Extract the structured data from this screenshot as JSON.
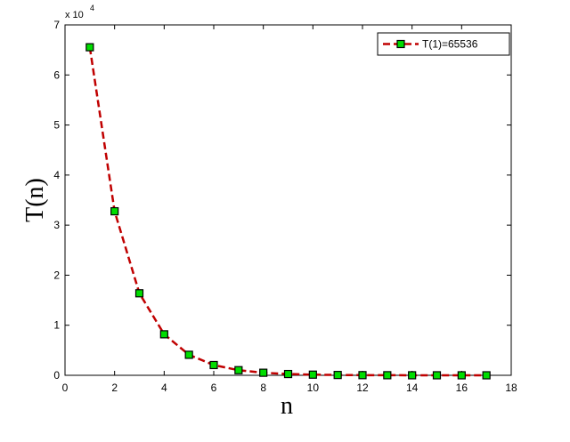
{
  "chart_data": {
    "type": "line",
    "x": [
      1,
      2,
      3,
      4,
      5,
      6,
      7,
      8,
      9,
      10,
      11,
      12,
      13,
      14,
      15,
      16,
      17
    ],
    "series": [
      {
        "name": "T(1)=65536",
        "color": "#c00000",
        "marker_color": "#00dd00",
        "values": [
          65536,
          32768,
          16384,
          8192,
          4096,
          2048,
          1024,
          512,
          256,
          128,
          64,
          32,
          16,
          8,
          4,
          2,
          1
        ]
      }
    ],
    "xlabel": "n",
    "ylabel": "T(n)",
    "y_multiplier": {
      "base": "x 10",
      "exponent": "4"
    },
    "xlim": [
      0,
      18
    ],
    "xticks": [
      0,
      2,
      4,
      6,
      8,
      10,
      12,
      14,
      16,
      18
    ],
    "ylim": [
      0,
      70000
    ],
    "yticks": [
      {
        "value": 0,
        "label": "0"
      },
      {
        "value": 10000,
        "label": "1"
      },
      {
        "value": 20000,
        "label": "2"
      },
      {
        "value": 30000,
        "label": "3"
      },
      {
        "value": 40000,
        "label": "4"
      },
      {
        "value": 50000,
        "label": "5"
      },
      {
        "value": 60000,
        "label": "6"
      },
      {
        "value": 70000,
        "label": "7"
      }
    ],
    "legend": "upper right"
  }
}
